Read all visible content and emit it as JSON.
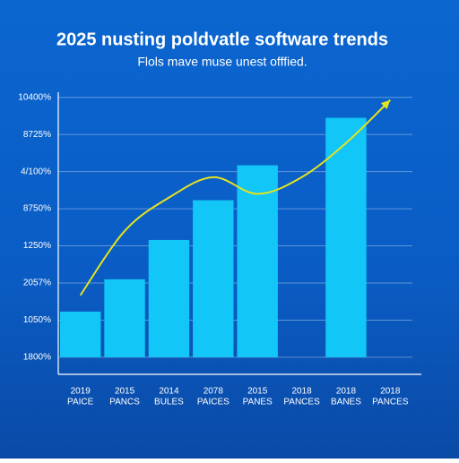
{
  "chart_data": {
    "type": "bar",
    "title": "2025 nusting poldvatle software trends",
    "subtitle": "Flols mave muse unest offfied.",
    "categories": [
      [
        "2019",
        "PAICE"
      ],
      [
        "2015",
        "PANCS"
      ],
      [
        "2014",
        "BULES"
      ],
      [
        "2078",
        "PAICES"
      ],
      [
        "2015",
        "PANES"
      ],
      [
        "2018",
        "PANCES"
      ],
      [
        "2018",
        "BANES"
      ],
      [
        "2018",
        "PANCES"
      ]
    ],
    "series": [
      {
        "type": "bar",
        "color": "#12c6f7",
        "values": [
          1.23,
          2.1,
          3.16,
          4.23,
          5.17,
          null,
          6.45,
          null
        ]
      },
      {
        "type": "line",
        "color": "#e6e41c",
        "values": [
          1.67,
          3.4,
          4.3,
          4.85,
          4.4,
          4.85,
          5.77,
          6.93
        ]
      }
    ],
    "ylim": [
      -0.46,
      7.5
    ],
    "yticks": [
      {
        "value": 0,
        "label": "1800%"
      },
      {
        "value": 1,
        "label": "1050%"
      },
      {
        "value": 2,
        "label": "2057%"
      },
      {
        "value": 3,
        "label": "1250%"
      },
      {
        "value": 4,
        "label": "8750%"
      },
      {
        "value": 5,
        "label": "4/100%"
      },
      {
        "value": 6,
        "label": "8725%"
      },
      {
        "value": 7,
        "label": "10400%"
      }
    ],
    "grid": true
  }
}
